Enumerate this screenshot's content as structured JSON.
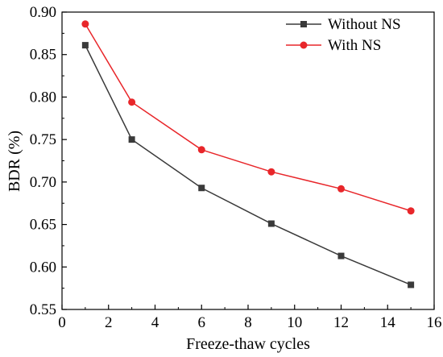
{
  "chart_data": {
    "type": "line",
    "xlabel": "Freeze-thaw cycles",
    "ylabel": "BDR (%)",
    "xlim": [
      0,
      16
    ],
    "ylim": [
      0.55,
      0.9
    ],
    "xticks": [
      "0",
      "2",
      "4",
      "6",
      "8",
      "10",
      "12",
      "14",
      "16"
    ],
    "yticks": [
      "0.55",
      "0.60",
      "0.65",
      "0.70",
      "0.75",
      "0.80",
      "0.85",
      "0.90"
    ],
    "grid": false,
    "legend_position": "top-right",
    "x": [
      1,
      3,
      6,
      9,
      12,
      15
    ],
    "series": [
      {
        "name": "Without NS",
        "color": "#3a3a3a",
        "marker": "square",
        "values": [
          0.861,
          0.75,
          0.693,
          0.651,
          0.613,
          0.579
        ]
      },
      {
        "name": "With NS",
        "color": "#e8262a",
        "marker": "circle",
        "values": [
          0.886,
          0.794,
          0.738,
          0.712,
          0.692,
          0.666
        ]
      }
    ]
  }
}
